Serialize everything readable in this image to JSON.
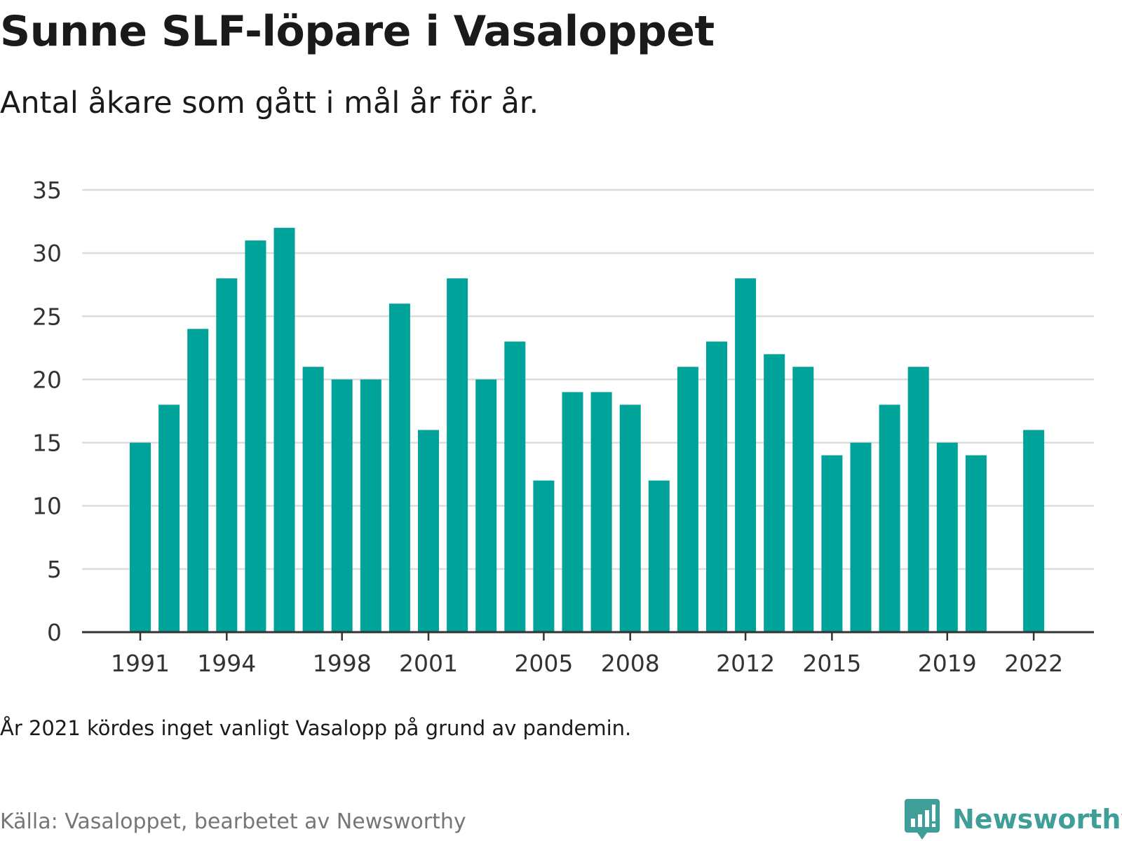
{
  "header": {
    "title": "Sunne SLF-löpare i Vasaloppet",
    "subtitle": "Antal åkare som gått i mål år för år."
  },
  "footer": {
    "note": "År 2021 kördes inget vanligt Vasalopp på grund av pandemin.",
    "source": "Källa: Vasaloppet, bearbetet av Newsworthy",
    "brand": "Newsworthy",
    "brand_icon": "bar-chart-speech-bubble-icon"
  },
  "colors": {
    "bar": "#00a39a",
    "grid": "#dcdcdc",
    "axis": "#333333",
    "tick_text": "#333333",
    "brand": "#3f9e98"
  },
  "chart_data": {
    "type": "bar",
    "title": "Sunne SLF-löpare i Vasaloppet",
    "subtitle": "Antal åkare som gått i mål år för år.",
    "categories": [
      "1991",
      "1992",
      "1993",
      "1994",
      "1995",
      "1996",
      "1997",
      "1998",
      "1999",
      "2000",
      "2001",
      "2002",
      "2003",
      "2004",
      "2005",
      "2006",
      "2007",
      "2008",
      "2009",
      "2010",
      "2011",
      "2012",
      "2013",
      "2014",
      "2015",
      "2016",
      "2017",
      "2018",
      "2019",
      "2020",
      "2021",
      "2022"
    ],
    "values": [
      15,
      18,
      24,
      28,
      31,
      32,
      21,
      20,
      20,
      26,
      16,
      28,
      20,
      23,
      12,
      19,
      19,
      18,
      12,
      21,
      23,
      28,
      22,
      21,
      14,
      15,
      18,
      21,
      15,
      14,
      null,
      16
    ],
    "x_tick_labels": [
      "1991",
      "1994",
      "1998",
      "2001",
      "2005",
      "2008",
      "2012",
      "2015",
      "2019",
      "2022"
    ],
    "y_ticks": [
      0,
      5,
      10,
      15,
      20,
      25,
      30,
      35
    ],
    "ylim": [
      0,
      35
    ],
    "xlabel": "",
    "ylabel": "",
    "grid": true,
    "legend": "none"
  }
}
